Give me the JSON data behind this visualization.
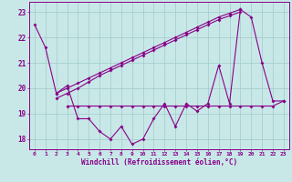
{
  "x": [
    0,
    1,
    2,
    3,
    4,
    5,
    6,
    7,
    8,
    9,
    10,
    11,
    12,
    13,
    14,
    15,
    16,
    17,
    18,
    19,
    20,
    21,
    22,
    23
  ],
  "windchill": [
    22.5,
    21.6,
    19.8,
    20.1,
    18.8,
    18.8,
    18.3,
    18.0,
    18.5,
    17.8,
    18.0,
    18.8,
    19.4,
    18.5,
    19.4,
    19.1,
    19.4,
    20.9,
    19.4,
    23.1,
    22.8,
    21.0,
    19.5,
    19.5
  ],
  "line_flat_x": [
    3,
    4,
    5,
    6,
    7,
    8,
    9,
    10,
    11,
    12,
    13,
    14,
    15,
    16,
    17,
    18,
    19,
    20,
    21,
    22,
    23
  ],
  "line_flat_y": [
    19.3,
    19.3,
    19.3,
    19.3,
    19.3,
    19.3,
    19.3,
    19.3,
    19.3,
    19.3,
    19.3,
    19.3,
    19.3,
    19.3,
    19.3,
    19.3,
    19.3,
    19.3,
    19.3,
    19.3,
    19.5
  ],
  "line_diag1_x": [
    2,
    3,
    4,
    5,
    6,
    7,
    8,
    9,
    10,
    11,
    12,
    13,
    14,
    15,
    16,
    17,
    18,
    19
  ],
  "line_diag1_y": [
    19.8,
    20.0,
    20.2,
    20.4,
    20.6,
    20.8,
    21.0,
    21.2,
    21.4,
    21.6,
    21.8,
    22.0,
    22.2,
    22.4,
    22.6,
    22.8,
    22.95,
    23.1
  ],
  "line_diag2_x": [
    2,
    3,
    4,
    5,
    6,
    7,
    8,
    9,
    10,
    11,
    12,
    13,
    14,
    15,
    16,
    17,
    18,
    19
  ],
  "line_diag2_y": [
    19.6,
    19.8,
    20.0,
    20.25,
    20.5,
    20.7,
    20.9,
    21.1,
    21.3,
    21.5,
    21.7,
    21.9,
    22.1,
    22.3,
    22.5,
    22.7,
    22.85,
    23.0
  ],
  "bg_color": "#c8e8e8",
  "grid_color": "#a8cece",
  "line_color": "#880088",
  "xlabel": "Windchill (Refroidissement éolien,°C)",
  "ylim": [
    17.6,
    23.4
  ],
  "xlim": [
    -0.5,
    23.5
  ],
  "yticks": [
    18,
    19,
    20,
    21,
    22,
    23
  ]
}
